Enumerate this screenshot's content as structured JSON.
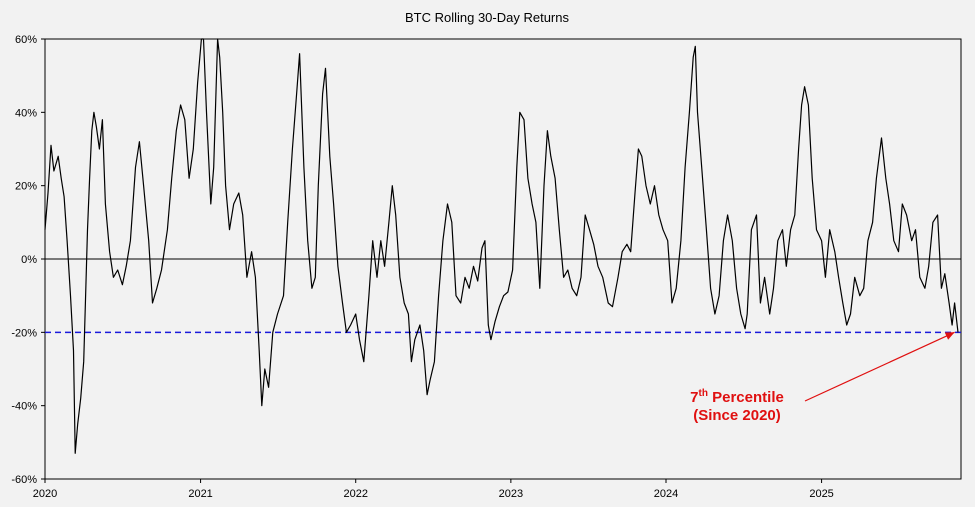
{
  "chart_data": {
    "type": "line",
    "title": "BTC Rolling 30-Day Returns",
    "xlabel": "",
    "ylabel": "",
    "ylim": [
      -60,
      60
    ],
    "xlim": [
      "2020-01-01",
      "2025-11-25"
    ],
    "grid": false,
    "y_ticks": [
      "60%",
      "40%",
      "20%",
      "0%",
      "-20%",
      "-40%",
      "-60%"
    ],
    "x_ticks": [
      "2020",
      "2021",
      "2022",
      "2023",
      "2024",
      "2025"
    ],
    "reference_line": {
      "value": -20,
      "style": "dashed",
      "color": "#1a1adb"
    },
    "zero_line": {
      "value": 0,
      "color": "#000000"
    },
    "annotation": {
      "base": "7",
      "superscript": "th",
      "line1_rest": " Percentile",
      "line2": "(Since 2020)",
      "color": "#e01010",
      "points_to": {
        "x": "2025-11-10",
        "y": -20
      }
    },
    "series": [
      {
        "color": "#000000",
        "points": [
          [
            "2020-01-01",
            8
          ],
          [
            "2020-01-08",
            18
          ],
          [
            "2020-01-15",
            31
          ],
          [
            "2020-01-22",
            24
          ],
          [
            "2020-02-01",
            28
          ],
          [
            "2020-02-08",
            22
          ],
          [
            "2020-02-15",
            17
          ],
          [
            "2020-02-22",
            5
          ],
          [
            "2020-03-01",
            -10
          ],
          [
            "2020-03-08",
            -25
          ],
          [
            "2020-03-12",
            -53
          ],
          [
            "2020-03-18",
            -45
          ],
          [
            "2020-03-25",
            -38
          ],
          [
            "2020-04-01",
            -28
          ],
          [
            "2020-04-05",
            -12
          ],
          [
            "2020-04-10",
            8
          ],
          [
            "2020-04-15",
            22
          ],
          [
            "2020-04-20",
            35
          ],
          [
            "2020-04-25",
            40
          ],
          [
            "2020-05-01",
            36
          ],
          [
            "2020-05-08",
            30
          ],
          [
            "2020-05-15",
            38
          ],
          [
            "2020-05-22",
            15
          ],
          [
            "2020-06-01",
            2
          ],
          [
            "2020-06-10",
            -5
          ],
          [
            "2020-06-20",
            -3
          ],
          [
            "2020-07-01",
            -7
          ],
          [
            "2020-07-10",
            -2
          ],
          [
            "2020-07-20",
            5
          ],
          [
            "2020-08-01",
            25
          ],
          [
            "2020-08-10",
            32
          ],
          [
            "2020-08-20",
            20
          ],
          [
            "2020-09-01",
            5
          ],
          [
            "2020-09-10",
            -12
          ],
          [
            "2020-09-20",
            -8
          ],
          [
            "2020-10-01",
            -3
          ],
          [
            "2020-10-15",
            8
          ],
          [
            "2020-10-25",
            22
          ],
          [
            "2020-11-05",
            35
          ],
          [
            "2020-11-15",
            42
          ],
          [
            "2020-11-25",
            38
          ],
          [
            "2020-12-05",
            22
          ],
          [
            "2020-12-15",
            30
          ],
          [
            "2020-12-25",
            48
          ],
          [
            "2021-01-03",
            62
          ],
          [
            "2021-01-08",
            65
          ],
          [
            "2021-01-15",
            40
          ],
          [
            "2021-01-25",
            15
          ],
          [
            "2021-02-01",
            25
          ],
          [
            "2021-02-10",
            60
          ],
          [
            "2021-02-15",
            55
          ],
          [
            "2021-02-22",
            40
          ],
          [
            "2021-03-01",
            20
          ],
          [
            "2021-03-10",
            8
          ],
          [
            "2021-03-20",
            15
          ],
          [
            "2021-04-01",
            18
          ],
          [
            "2021-04-10",
            12
          ],
          [
            "2021-04-20",
            -5
          ],
          [
            "2021-05-01",
            2
          ],
          [
            "2021-05-10",
            -5
          ],
          [
            "2021-05-19",
            -25
          ],
          [
            "2021-05-25",
            -40
          ],
          [
            "2021-06-01",
            -30
          ],
          [
            "2021-06-10",
            -35
          ],
          [
            "2021-06-20",
            -20
          ],
          [
            "2021-07-01",
            -15
          ],
          [
            "2021-07-15",
            -10
          ],
          [
            "2021-07-25",
            10
          ],
          [
            "2021-08-05",
            30
          ],
          [
            "2021-08-15",
            45
          ],
          [
            "2021-08-22",
            56
          ],
          [
            "2021-09-01",
            25
          ],
          [
            "2021-09-10",
            5
          ],
          [
            "2021-09-20",
            -8
          ],
          [
            "2021-09-28",
            -5
          ],
          [
            "2021-10-05",
            20
          ],
          [
            "2021-10-15",
            45
          ],
          [
            "2021-10-22",
            52
          ],
          [
            "2021-11-01",
            28
          ],
          [
            "2021-11-10",
            15
          ],
          [
            "2021-11-20",
            -2
          ],
          [
            "2021-12-01",
            -12
          ],
          [
            "2021-12-10",
            -20
          ],
          [
            "2021-12-20",
            -18
          ],
          [
            "2022-01-01",
            -15
          ],
          [
            "2022-01-10",
            -22
          ],
          [
            "2022-01-20",
            -28
          ],
          [
            "2022-02-01",
            -10
          ],
          [
            "2022-02-10",
            5
          ],
          [
            "2022-02-20",
            -5
          ],
          [
            "2022-03-01",
            5
          ],
          [
            "2022-03-10",
            -2
          ],
          [
            "2022-03-20",
            10
          ],
          [
            "2022-03-28",
            20
          ],
          [
            "2022-04-05",
            12
          ],
          [
            "2022-04-15",
            -5
          ],
          [
            "2022-04-25",
            -12
          ],
          [
            "2022-05-05",
            -15
          ],
          [
            "2022-05-12",
            -28
          ],
          [
            "2022-05-20",
            -22
          ],
          [
            "2022-06-01",
            -18
          ],
          [
            "2022-06-10",
            -25
          ],
          [
            "2022-06-18",
            -37
          ],
          [
            "2022-06-25",
            -33
          ],
          [
            "2022-07-05",
            -28
          ],
          [
            "2022-07-15",
            -10
          ],
          [
            "2022-07-25",
            5
          ],
          [
            "2022-08-05",
            15
          ],
          [
            "2022-08-15",
            10
          ],
          [
            "2022-08-25",
            -10
          ],
          [
            "2022-09-05",
            -12
          ],
          [
            "2022-09-15",
            -5
          ],
          [
            "2022-09-25",
            -8
          ],
          [
            "2022-10-05",
            -2
          ],
          [
            "2022-10-15",
            -6
          ],
          [
            "2022-10-25",
            3
          ],
          [
            "2022-11-01",
            5
          ],
          [
            "2022-11-09",
            -18
          ],
          [
            "2022-11-15",
            -22
          ],
          [
            "2022-11-25",
            -17
          ],
          [
            "2022-12-05",
            -13
          ],
          [
            "2022-12-15",
            -10
          ],
          [
            "2022-12-25",
            -9
          ],
          [
            "2023-01-05",
            -3
          ],
          [
            "2023-01-15",
            25
          ],
          [
            "2023-01-22",
            40
          ],
          [
            "2023-02-01",
            38
          ],
          [
            "2023-02-10",
            22
          ],
          [
            "2023-02-20",
            15
          ],
          [
            "2023-03-01",
            10
          ],
          [
            "2023-03-10",
            -8
          ],
          [
            "2023-03-20",
            20
          ],
          [
            "2023-03-28",
            35
          ],
          [
            "2023-04-05",
            28
          ],
          [
            "2023-04-15",
            22
          ],
          [
            "2023-04-25",
            8
          ],
          [
            "2023-05-05",
            -5
          ],
          [
            "2023-05-15",
            -3
          ],
          [
            "2023-05-25",
            -8
          ],
          [
            "2023-06-05",
            -10
          ],
          [
            "2023-06-15",
            -5
          ],
          [
            "2023-06-25",
            12
          ],
          [
            "2023-07-05",
            8
          ],
          [
            "2023-07-15",
            4
          ],
          [
            "2023-07-25",
            -2
          ],
          [
            "2023-08-05",
            -5
          ],
          [
            "2023-08-18",
            -12
          ],
          [
            "2023-08-28",
            -13
          ],
          [
            "2023-09-10",
            -5
          ],
          [
            "2023-09-20",
            2
          ],
          [
            "2023-10-01",
            4
          ],
          [
            "2023-10-10",
            2
          ],
          [
            "2023-10-20",
            18
          ],
          [
            "2023-10-28",
            30
          ],
          [
            "2023-11-05",
            28
          ],
          [
            "2023-11-15",
            20
          ],
          [
            "2023-11-25",
            15
          ],
          [
            "2023-12-05",
            20
          ],
          [
            "2023-12-15",
            12
          ],
          [
            "2023-12-25",
            8
          ],
          [
            "2024-01-05",
            5
          ],
          [
            "2024-01-15",
            -12
          ],
          [
            "2024-01-25",
            -8
          ],
          [
            "2024-02-05",
            5
          ],
          [
            "2024-02-15",
            25
          ],
          [
            "2024-02-25",
            40
          ],
          [
            "2024-03-05",
            55
          ],
          [
            "2024-03-10",
            58
          ],
          [
            "2024-03-15",
            40
          ],
          [
            "2024-03-25",
            25
          ],
          [
            "2024-04-05",
            8
          ],
          [
            "2024-04-15",
            -8
          ],
          [
            "2024-04-25",
            -15
          ],
          [
            "2024-05-05",
            -10
          ],
          [
            "2024-05-15",
            5
          ],
          [
            "2024-05-25",
            12
          ],
          [
            "2024-06-05",
            5
          ],
          [
            "2024-06-15",
            -8
          ],
          [
            "2024-06-25",
            -15
          ],
          [
            "2024-07-05",
            -19
          ],
          [
            "2024-07-10",
            -15
          ],
          [
            "2024-07-20",
            8
          ],
          [
            "2024-08-01",
            12
          ],
          [
            "2024-08-10",
            -12
          ],
          [
            "2024-08-20",
            -5
          ],
          [
            "2024-09-01",
            -15
          ],
          [
            "2024-09-10",
            -8
          ],
          [
            "2024-09-20",
            5
          ],
          [
            "2024-10-01",
            8
          ],
          [
            "2024-10-10",
            -2
          ],
          [
            "2024-10-20",
            8
          ],
          [
            "2024-10-30",
            12
          ],
          [
            "2024-11-08",
            30
          ],
          [
            "2024-11-15",
            42
          ],
          [
            "2024-11-22",
            47
          ],
          [
            "2024-12-01",
            42
          ],
          [
            "2024-12-10",
            22
          ],
          [
            "2024-12-20",
            8
          ],
          [
            "2025-01-01",
            5
          ],
          [
            "2025-01-10",
            -5
          ],
          [
            "2025-01-20",
            8
          ],
          [
            "2025-02-01",
            2
          ],
          [
            "2025-02-10",
            -5
          ],
          [
            "2025-02-20",
            -12
          ],
          [
            "2025-03-01",
            -18
          ],
          [
            "2025-03-10",
            -15
          ],
          [
            "2025-03-20",
            -5
          ],
          [
            "2025-04-01",
            -10
          ],
          [
            "2025-04-10",
            -8
          ],
          [
            "2025-04-20",
            5
          ],
          [
            "2025-05-01",
            10
          ],
          [
            "2025-05-10",
            22
          ],
          [
            "2025-05-22",
            33
          ],
          [
            "2025-06-01",
            22
          ],
          [
            "2025-06-10",
            15
          ],
          [
            "2025-06-20",
            5
          ],
          [
            "2025-07-01",
            2
          ],
          [
            "2025-07-10",
            15
          ],
          [
            "2025-07-20",
            12
          ],
          [
            "2025-08-01",
            5
          ],
          [
            "2025-08-10",
            8
          ],
          [
            "2025-08-20",
            -5
          ],
          [
            "2025-09-01",
            -8
          ],
          [
            "2025-09-10",
            -2
          ],
          [
            "2025-09-20",
            10
          ],
          [
            "2025-10-01",
            12
          ],
          [
            "2025-10-10",
            -8
          ],
          [
            "2025-10-18",
            -4
          ],
          [
            "2025-10-28",
            -12
          ],
          [
            "2025-11-04",
            -18
          ],
          [
            "2025-11-10",
            -12
          ],
          [
            "2025-11-18",
            -20
          ]
        ]
      }
    ]
  }
}
